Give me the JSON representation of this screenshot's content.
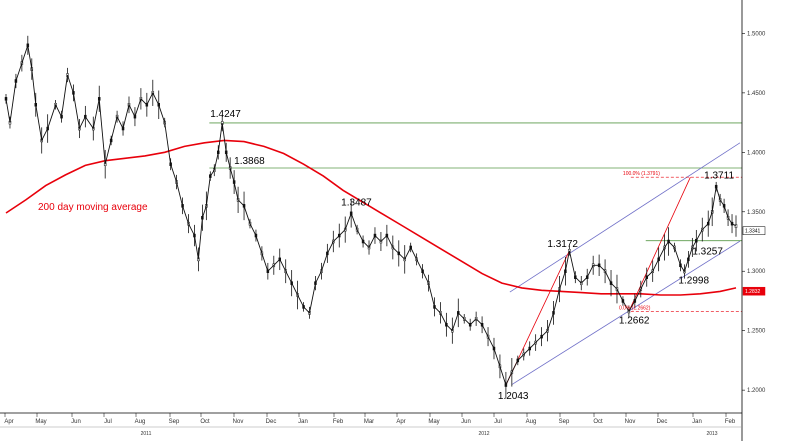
{
  "chart_data": {
    "type": "candlestick",
    "y_axis": {
      "position": "right",
      "range": [
        1.1833,
        1.5239
      ],
      "ticks": [
        "1.5000",
        "1.4500",
        "1.4000",
        "1.3500",
        "1.3000",
        "1.2500",
        "1.2000"
      ]
    },
    "x_axis": {
      "months": [
        "Apr",
        "May",
        "Jun",
        "Jul",
        "Aug",
        "Sep",
        "Oct",
        "Nov",
        "Dec",
        "Jan",
        "Feb",
        "Mar",
        "Apr",
        "May",
        "Jun",
        "Jul",
        "Aug",
        "Sep",
        "Oct",
        "Nov",
        "Dec",
        "Jan",
        "Feb"
      ],
      "years": [
        "2011",
        "2012",
        "2013"
      ]
    },
    "price_series": {
      "color": "#111111",
      "points": [
        [
          0,
          1.445
        ],
        [
          4,
          1.425
        ],
        [
          10,
          1.46
        ],
        [
          16,
          1.475
        ],
        [
          22,
          1.49
        ],
        [
          26,
          1.47
        ],
        [
          30,
          1.44
        ],
        [
          36,
          1.41
        ],
        [
          42,
          1.42
        ],
        [
          50,
          1.44
        ],
        [
          56,
          1.43
        ],
        [
          62,
          1.465
        ],
        [
          68,
          1.45
        ],
        [
          74,
          1.42
        ],
        [
          80,
          1.43
        ],
        [
          88,
          1.42
        ],
        [
          94,
          1.445
        ],
        [
          100,
          1.39
        ],
        [
          106,
          1.41
        ],
        [
          112,
          1.43
        ],
        [
          118,
          1.42
        ],
        [
          124,
          1.44
        ],
        [
          130,
          1.43
        ],
        [
          136,
          1.445
        ],
        [
          142,
          1.44
        ],
        [
          148,
          1.45
        ],
        [
          154,
          1.44
        ],
        [
          160,
          1.425
        ],
        [
          166,
          1.39
        ],
        [
          172,
          1.375
        ],
        [
          178,
          1.355
        ],
        [
          184,
          1.34
        ],
        [
          190,
          1.33
        ],
        [
          194,
          1.31
        ],
        [
          198,
          1.345
        ],
        [
          202,
          1.355
        ],
        [
          206,
          1.38
        ],
        [
          210,
          1.385
        ],
        [
          214,
          1.4
        ],
        [
          218,
          1.4247
        ],
        [
          222,
          1.4
        ],
        [
          226,
          1.3868
        ],
        [
          230,
          1.375
        ],
        [
          234,
          1.36
        ],
        [
          240,
          1.355
        ],
        [
          246,
          1.34
        ],
        [
          252,
          1.33
        ],
        [
          258,
          1.315
        ],
        [
          264,
          1.3
        ],
        [
          270,
          1.305
        ],
        [
          276,
          1.31
        ],
        [
          282,
          1.3
        ],
        [
          288,
          1.29
        ],
        [
          294,
          1.28
        ],
        [
          300,
          1.27
        ],
        [
          306,
          1.265
        ],
        [
          312,
          1.29
        ],
        [
          318,
          1.3
        ],
        [
          324,
          1.315
        ],
        [
          330,
          1.325
        ],
        [
          336,
          1.33
        ],
        [
          342,
          1.335
        ],
        [
          348,
          1.3487
        ],
        [
          354,
          1.335
        ],
        [
          360,
          1.325
        ],
        [
          366,
          1.32
        ],
        [
          372,
          1.33
        ],
        [
          378,
          1.325
        ],
        [
          384,
          1.33
        ],
        [
          390,
          1.32
        ],
        [
          396,
          1.315
        ],
        [
          402,
          1.31
        ],
        [
          408,
          1.32
        ],
        [
          414,
          1.31
        ],
        [
          420,
          1.3
        ],
        [
          426,
          1.29
        ],
        [
          432,
          1.27
        ],
        [
          438,
          1.265
        ],
        [
          444,
          1.255
        ],
        [
          450,
          1.25
        ],
        [
          456,
          1.265
        ],
        [
          462,
          1.26
        ],
        [
          468,
          1.255
        ],
        [
          474,
          1.26
        ],
        [
          480,
          1.255
        ],
        [
          486,
          1.245
        ],
        [
          492,
          1.235
        ],
        [
          498,
          1.22
        ],
        [
          504,
          1.2043
        ],
        [
          510,
          1.215
        ],
        [
          516,
          1.225
        ],
        [
          522,
          1.23
        ],
        [
          528,
          1.235
        ],
        [
          534,
          1.24
        ],
        [
          540,
          1.245
        ],
        [
          546,
          1.25
        ],
        [
          552,
          1.265
        ],
        [
          558,
          1.285
        ],
        [
          564,
          1.3
        ],
        [
          568,
          1.3172
        ],
        [
          574,
          1.295
        ],
        [
          580,
          1.29
        ],
        [
          586,
          1.295
        ],
        [
          592,
          1.305
        ],
        [
          598,
          1.305
        ],
        [
          604,
          1.3
        ],
        [
          610,
          1.29
        ],
        [
          616,
          1.285
        ],
        [
          622,
          1.275
        ],
        [
          628,
          1.2662
        ],
        [
          634,
          1.275
        ],
        [
          640,
          1.285
        ],
        [
          646,
          1.295
        ],
        [
          652,
          1.3
        ],
        [
          658,
          1.31
        ],
        [
          664,
          1.32
        ],
        [
          668,
          1.325
        ],
        [
          674,
          1.32
        ],
        [
          680,
          1.305
        ],
        [
          684,
          1.2998
        ],
        [
          688,
          1.31
        ],
        [
          692,
          1.32
        ],
        [
          696,
          1.3257
        ],
        [
          702,
          1.335
        ],
        [
          708,
          1.34
        ],
        [
          712,
          1.35
        ],
        [
          716,
          1.3711
        ],
        [
          720,
          1.36
        ],
        [
          724,
          1.355
        ],
        [
          728,
          1.345
        ],
        [
          732,
          1.34
        ],
        [
          736,
          1.338
        ]
      ]
    },
    "moving_average": {
      "label": "200 day moving average",
      "color": "#e8000b",
      "points": [
        [
          0,
          1.349
        ],
        [
          20,
          1.36
        ],
        [
          40,
          1.372
        ],
        [
          60,
          1.381
        ],
        [
          80,
          1.389
        ],
        [
          100,
          1.393
        ],
        [
          120,
          1.395
        ],
        [
          140,
          1.397
        ],
        [
          160,
          1.4
        ],
        [
          180,
          1.405
        ],
        [
          200,
          1.408
        ],
        [
          220,
          1.41
        ],
        [
          240,
          1.409
        ],
        [
          260,
          1.405
        ],
        [
          280,
          1.399
        ],
        [
          300,
          1.39
        ],
        [
          320,
          1.38
        ],
        [
          340,
          1.368
        ],
        [
          360,
          1.358
        ],
        [
          380,
          1.348
        ],
        [
          400,
          1.338
        ],
        [
          420,
          1.328
        ],
        [
          440,
          1.318
        ],
        [
          460,
          1.308
        ],
        [
          480,
          1.298
        ],
        [
          500,
          1.29
        ],
        [
          520,
          1.286
        ],
        [
          540,
          1.284
        ],
        [
          560,
          1.283
        ],
        [
          580,
          1.282
        ],
        [
          600,
          1.281
        ],
        [
          620,
          1.281
        ],
        [
          640,
          1.281
        ],
        [
          660,
          1.28
        ],
        [
          680,
          1.28
        ],
        [
          700,
          1.281
        ],
        [
          720,
          1.283
        ],
        [
          736,
          1.286
        ]
      ]
    },
    "annotations": [
      {
        "label": "1.4247",
        "x": 218,
        "y": 1.4247
      },
      {
        "label": "1.3868",
        "x": 226,
        "y": 1.3868
      },
      {
        "label": "1.3487",
        "x": 348,
        "y": 1.3487
      },
      {
        "label": "1.3172",
        "x": 568,
        "y": 1.3172
      },
      {
        "label": "1.2043",
        "x": 504,
        "y": 1.2043
      },
      {
        "label": "1.2662",
        "x": 628,
        "y": 1.2662
      },
      {
        "label": "1.2998",
        "x": 684,
        "y": 1.2998
      },
      {
        "label": "1.3257",
        "x": 696,
        "y": 1.3257
      },
      {
        "label": "1.3711",
        "x": 716,
        "y": 1.3711
      }
    ],
    "horizontal_lines": [
      {
        "y": 1.4247,
        "color": "#5a9a4a"
      },
      {
        "y": 1.3868,
        "color": "#5a9a4a"
      },
      {
        "y": 1.3257,
        "color": "#5a9a4a"
      }
    ],
    "fibonacci": [
      {
        "label": "100.0% (1.3791)",
        "y": 1.3791
      },
      {
        "label": "0.0% (1.2662)",
        "y": 1.2662
      }
    ],
    "channel_lines": {
      "color": "#7070c8",
      "upper": [
        [
          508,
          1.2825
        ],
        [
          740,
          1.408
        ]
      ],
      "lower": [
        [
          510,
          1.2047
        ],
        [
          740,
          1.3253
        ]
      ]
    },
    "fib_lines": {
      "color": "#e8000b",
      "rise": [
        [
          504,
          1.2043
        ],
        [
          568,
          1.3172
        ]
      ],
      "rise2": [
        [
          628,
          1.2662
        ],
        [
          690,
          1.3791
        ]
      ]
    },
    "value_tags": [
      {
        "label": "1.3341",
        "y": 1.3341,
        "fill": "#ffffff",
        "text_color": "#000000"
      },
      {
        "label": "1.2832",
        "y": 1.2832,
        "fill": "#e8000b",
        "text_color": "#ffffff"
      }
    ]
  }
}
